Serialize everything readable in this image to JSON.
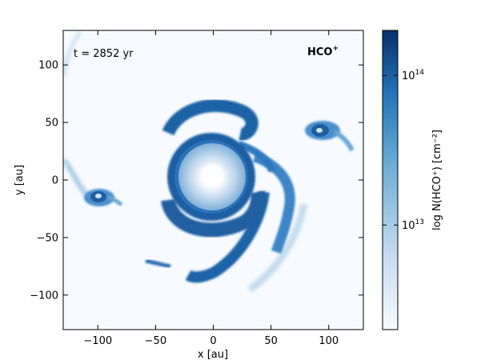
{
  "chart_data": {
    "type": "heatmap",
    "title": "",
    "time_label": "t = 2852 yr",
    "species_label": {
      "base": "HCO",
      "sup": "+"
    },
    "xlabel": "x [au]",
    "ylabel": "y [au]",
    "xlim": [
      -130,
      130
    ],
    "ylim": [
      -130,
      130
    ],
    "xticks": [
      {
        "value": -100,
        "label": "−100"
      },
      {
        "value": -50,
        "label": "−50"
      },
      {
        "value": 0,
        "label": "0"
      },
      {
        "value": 50,
        "label": "50"
      },
      {
        "value": 100,
        "label": "100"
      }
    ],
    "yticks": [
      {
        "value": 100,
        "label": "100"
      },
      {
        "value": 50,
        "label": "50"
      },
      {
        "value": 0,
        "label": "0"
      },
      {
        "value": -50,
        "label": "−50"
      },
      {
        "value": -100,
        "label": "−100"
      }
    ],
    "colorbar": {
      "label": "log N(HCO⁺) [cm⁻²]",
      "scale": "log",
      "range": [
        2000000000000.0,
        200000000000000.0
      ],
      "ticks": [
        {
          "value": 100000000000000.0,
          "base": "10",
          "exp": "14"
        },
        {
          "value": 10000000000000.0,
          "base": "10",
          "exp": "13"
        }
      ],
      "colormap": "Blues",
      "colors": [
        "#f7fbff",
        "#c6dbef",
        "#6baed6",
        "#2171b5",
        "#08306b"
      ]
    },
    "grid": false,
    "features": [
      {
        "name": "central-disk",
        "center": [
          0,
          0
        ],
        "radius_au": 30,
        "level": 0.35
      },
      {
        "name": "dense-ring",
        "center": [
          0,
          0
        ],
        "radius_au": 40,
        "level": 0.85
      },
      {
        "name": "left-clump",
        "center": [
          -100,
          -17
        ],
        "radius_au": 10,
        "level": 0.8
      },
      {
        "name": "right-clump",
        "center": [
          92,
          42
        ],
        "radius_au": 10,
        "level": 0.75
      }
    ]
  }
}
